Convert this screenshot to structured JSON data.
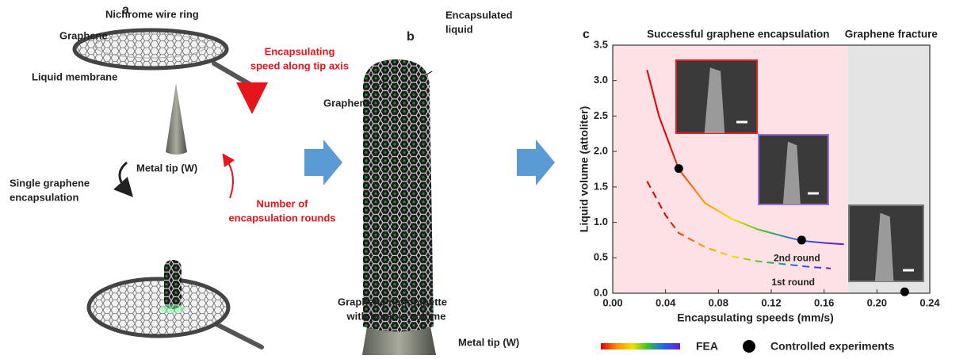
{
  "panel_a": {
    "label": "a",
    "nichrome": "Nichrome wire ring",
    "graphene": "Graphene",
    "membrane": "Liquid membrane",
    "speed": [
      "Encapsulating",
      "speed along tip axis"
    ],
    "tip": "Metal tip (W)",
    "single": [
      "Single graphene",
      "encapsulation"
    ],
    "rounds": [
      "Number of",
      "encapsulation rounds"
    ]
  },
  "panel_b": {
    "label": "b",
    "liquid": [
      "Encapsulated",
      "liquid"
    ],
    "graphene": "Graphene",
    "tip": "Metal tip (W)",
    "caption": [
      "Graphene nanopipette",
      "with tunable volume"
    ]
  },
  "chart_data": {
    "type": "line",
    "panel_label": "c",
    "xlabel": "Encapsulating speeds (mm/s)",
    "ylabel": "Liquid volume (attoliter)",
    "xlim": [
      0,
      0.24
    ],
    "ylim": [
      0,
      3.5
    ],
    "xticks": [
      {
        "value": 0,
        "label": "0.00"
      },
      0.04,
      0.08,
      0.12,
      0.16,
      {
        "value": 0.2,
        "label": "0.20"
      },
      0.24
    ],
    "yticks": [
      {
        "value": 0,
        "label": "0.0"
      },
      0.5,
      {
        "value": 1,
        "label": "1.0"
      },
      1.5,
      {
        "value": 2,
        "label": "2.0"
      },
      2.5,
      {
        "value": 3,
        "label": "3.0"
      },
      3.5
    ],
    "regions": [
      {
        "label": "Successful graphene encapsulation",
        "range": [
          0,
          0.178
        ],
        "color": "#fde1e4"
      },
      {
        "label": "Graphene fracture",
        "range": [
          0.178,
          0.24
        ],
        "color": "#e4e4e4"
      }
    ],
    "colormap": [
      "#e00000",
      "#ff8c00",
      "#f0e000",
      "#30c030",
      "#2060ff",
      "#6a1fc0"
    ],
    "fea_label": "FEA",
    "series": [
      {
        "name": "2nd round",
        "style": "solid",
        "x": [
          0.026,
          0.035,
          0.05,
          0.07,
          0.09,
          0.11,
          0.13,
          0.143,
          0.16,
          0.175
        ],
        "values": [
          3.15,
          2.5,
          1.75,
          1.27,
          1.05,
          0.9,
          0.8,
          0.74,
          0.71,
          0.69
        ]
      },
      {
        "name": "1st round",
        "style": "dashed",
        "x": [
          0.026,
          0.04,
          0.05,
          0.07,
          0.09,
          0.11,
          0.13,
          0.15,
          0.165
        ],
        "values": [
          1.58,
          1.1,
          0.85,
          0.65,
          0.52,
          0.45,
          0.41,
          0.37,
          0.35
        ]
      },
      {
        "name": "Controlled experiments",
        "type": "scatter",
        "color": "#000000",
        "x": [
          0.05,
          0.143,
          0.221
        ],
        "values": [
          1.76,
          0.75,
          0.02
        ]
      }
    ]
  }
}
